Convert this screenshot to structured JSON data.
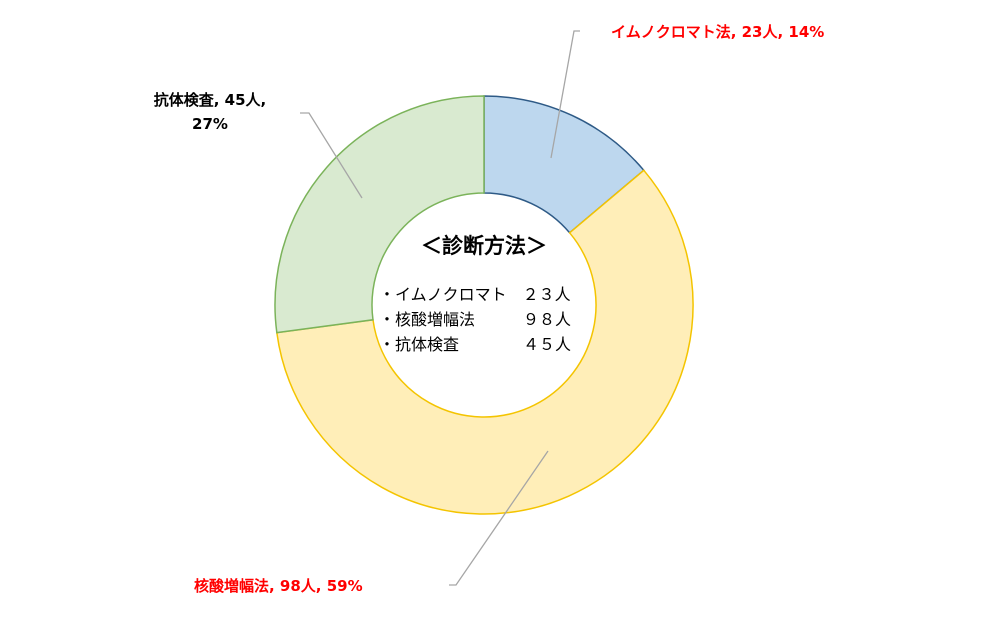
{
  "chart_data": {
    "type": "pie",
    "variant": "donut",
    "categories": [
      "イムノクロマト法",
      "核酸増幅法",
      "抗体検査"
    ],
    "values": [
      23,
      98,
      45
    ],
    "percents": [
      14,
      59,
      27
    ],
    "unit": "人",
    "colors": {
      "fills": [
        "#bdd7ee",
        "#ffeeb8",
        "#d9ead0"
      ],
      "strokes": [
        "#2e5a86",
        "#f4c400",
        "#7bb35a"
      ],
      "label_red": "#ff0000",
      "label_black": "#000000",
      "leader": "#a6a6a6"
    },
    "slice_labels": [
      {
        "lines": [
          "イムノクロマト法, 23人, 14%"
        ],
        "color": "red"
      },
      {
        "lines": [
          "核酸増幅法, 98人, 59%"
        ],
        "color": "red"
      },
      {
        "lines": [
          "抗体検査, 45人,",
          "27%"
        ],
        "color": "black"
      }
    ],
    "center": {
      "title": "＜診断方法＞",
      "lines": [
        "・イムノクロマト　２３人",
        "・核酸増幅法　　　９８人",
        "・抗体検査　　　　４５人"
      ]
    }
  }
}
